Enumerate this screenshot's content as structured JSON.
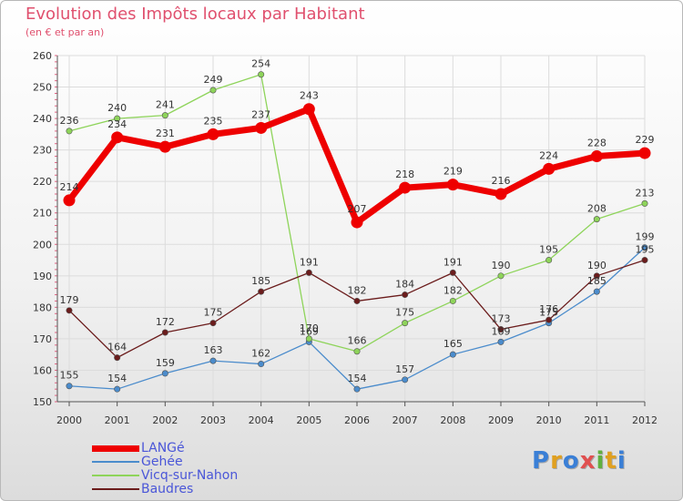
{
  "header": {
    "title": "Evolution des Impôts locaux par Habitant",
    "subtitle": "(en € et par an)"
  },
  "logo": {
    "text": "Proxiti",
    "letters": [
      {
        "ch": "P",
        "color": "#3a7fd6"
      },
      {
        "ch": "r",
        "color": "#e0a020"
      },
      {
        "ch": "o",
        "color": "#3a7fd6"
      },
      {
        "ch": "x",
        "color": "#e05050"
      },
      {
        "ch": "i",
        "color": "#60b040"
      },
      {
        "ch": "t",
        "color": "#e0a020"
      },
      {
        "ch": "i",
        "color": "#3a7fd6"
      }
    ]
  },
  "chart_data": {
    "type": "line",
    "title": "Evolution des Impôts locaux par Habitant",
    "subtitle": "(en € et par an)",
    "xlabel": "",
    "ylabel": "",
    "x": [
      "2000",
      "2001",
      "2002",
      "2003",
      "2004",
      "2005",
      "2006",
      "2007",
      "2008",
      "2009",
      "2010",
      "2011",
      "2012"
    ],
    "ylim": [
      150,
      260
    ],
    "yticks": [
      150,
      160,
      170,
      180,
      190,
      200,
      210,
      220,
      230,
      240,
      250,
      260
    ],
    "grid": true,
    "legend_position": "bottom-left",
    "series": [
      {
        "name": "LANGé",
        "color": "#ee0000",
        "values": [
          214,
          234,
          231,
          235,
          237,
          243,
          207,
          218,
          219,
          216,
          224,
          228,
          229
        ]
      },
      {
        "name": "Gehée",
        "color": "#4b8ccc",
        "values": [
          155,
          154,
          159,
          163,
          162,
          169,
          154,
          157,
          165,
          169,
          175,
          185,
          199
        ]
      },
      {
        "name": "Vicq-sur-Nahon",
        "color": "#8ed45a",
        "values": [
          236,
          240,
          241,
          249,
          254,
          170,
          166,
          175,
          182,
          190,
          195,
          208,
          213
        ]
      },
      {
        "name": "Baudres",
        "color": "#6b1c1c",
        "values": [
          179,
          164,
          172,
          175,
          185,
          191,
          182,
          184,
          191,
          173,
          176,
          190,
          195
        ]
      }
    ]
  }
}
